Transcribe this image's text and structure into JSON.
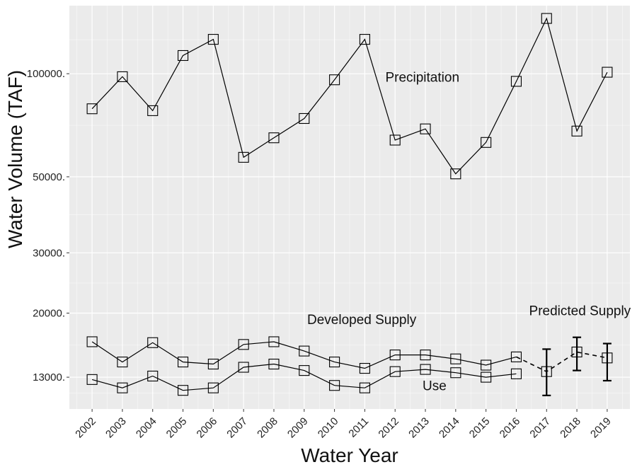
{
  "chart_data": {
    "type": "line",
    "title": "",
    "xlabel": "Water Year",
    "ylabel": "Water Volume (TAF)",
    "y_scale": "log",
    "ylim": [
      10500,
      158000
    ],
    "y_ticks": [
      13000,
      20000,
      30000,
      50000,
      100000
    ],
    "y_tick_labels": [
      "13000.",
      "20000.",
      "30000.",
      "50000.",
      "100000."
    ],
    "x": [
      2002,
      2003,
      2004,
      2005,
      2006,
      2007,
      2008,
      2009,
      2010,
      2011,
      2012,
      2013,
      2014,
      2015,
      2016,
      2017,
      2018,
      2019
    ],
    "grid": true,
    "background": "#ebebeb",
    "grid_color": "#ffffff",
    "line_color": "#000000",
    "series": [
      {
        "key": "precipitation",
        "name": "Precipitation",
        "marker": "square",
        "x": [
          2002,
          2003,
          2004,
          2005,
          2006,
          2007,
          2008,
          2009,
          2010,
          2011,
          2012,
          2013,
          2014,
          2015,
          2016,
          2017,
          2018,
          2019
        ],
        "values": [
          79000,
          98000,
          78000,
          113000,
          126000,
          57000,
          65000,
          74000,
          96000,
          126000,
          64000,
          69000,
          51000,
          63000,
          95000,
          145000,
          68000,
          101000
        ]
      },
      {
        "key": "developed_supply",
        "name": "Developed Supply",
        "marker": "square",
        "x": [
          2002,
          2003,
          2004,
          2005,
          2006,
          2007,
          2008,
          2009,
          2010,
          2011,
          2012,
          2013,
          2014,
          2015,
          2016
        ],
        "values": [
          16500,
          14400,
          16400,
          14400,
          14200,
          16200,
          16500,
          15500,
          14400,
          13800,
          15100,
          15100,
          14700,
          14100,
          14900
        ]
      },
      {
        "key": "use",
        "name": "Use",
        "marker": "square",
        "x": [
          2002,
          2003,
          2004,
          2005,
          2006,
          2007,
          2008,
          2009,
          2010,
          2011,
          2012,
          2013,
          2014,
          2015,
          2016
        ],
        "values": [
          12800,
          12100,
          13100,
          11900,
          12100,
          13900,
          14200,
          13600,
          12300,
          12100,
          13500,
          13700,
          13400,
          13000,
          13300
        ]
      },
      {
        "key": "predicted_supply",
        "name": "Predicted Supply",
        "marker": "square",
        "line_style": "dashed",
        "x": [
          2016,
          2017,
          2018,
          2019
        ],
        "values": [
          14900,
          13500,
          15400,
          14800
        ],
        "error_low": [
          null,
          11500,
          13600,
          12700
        ],
        "error_high": [
          null,
          15700,
          17000,
          16300
        ]
      }
    ],
    "annotations": [
      {
        "text": "Precipitation",
        "series": "precipitation"
      },
      {
        "text": "Developed Supply",
        "series": "developed_supply"
      },
      {
        "text": "Use",
        "series": "use"
      },
      {
        "text": "Predicted Supply",
        "series": "predicted_supply"
      }
    ]
  }
}
